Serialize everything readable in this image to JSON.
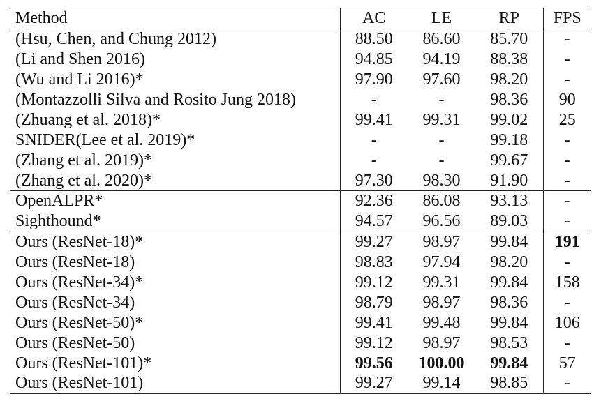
{
  "table": {
    "headers": [
      "Method",
      "AC",
      "LE",
      "RP",
      "FPS"
    ],
    "groups": [
      [
        {
          "method": "(Hsu, Chen, and Chung 2012)",
          "ac": "88.50",
          "le": "86.60",
          "rp": "85.70",
          "fps": "-"
        },
        {
          "method": "(Li and Shen 2016)",
          "ac": "94.85",
          "le": "94.19",
          "rp": "88.38",
          "fps": "-"
        },
        {
          "method": "(Wu and Li 2016)*",
          "ac": "97.90",
          "le": "97.60",
          "rp": "98.20",
          "fps": "-"
        },
        {
          "method": "(Montazzolli Silva and Rosito Jung 2018)",
          "ac": "-",
          "le": "-",
          "rp": "98.36",
          "fps": "90"
        },
        {
          "method": "(Zhuang et al. 2018)*",
          "ac": "99.41",
          "le": "99.31",
          "rp": "99.02",
          "fps": "25"
        },
        {
          "method": "SNIDER(Lee et al. 2019)*",
          "ac": "-",
          "le": "-",
          "rp": "99.18",
          "fps": "-"
        },
        {
          "method": "(Zhang et al. 2019)*",
          "ac": "-",
          "le": "-",
          "rp": "99.67",
          "fps": "-"
        },
        {
          "method": "(Zhang et al. 2020)*",
          "ac": "97.30",
          "le": "98.30",
          "rp": "91.90",
          "fps": "-"
        }
      ],
      [
        {
          "method": "OpenALPR*",
          "ac": "92.36",
          "le": "86.08",
          "rp": "93.13",
          "fps": "-"
        },
        {
          "method": "Sighthound*",
          "ac": "94.57",
          "le": "96.56",
          "rp": "89.03",
          "fps": "-"
        }
      ],
      [
        {
          "method": "Ours (ResNet-18)*",
          "ac": "99.27",
          "le": "98.97",
          "rp": "99.84",
          "fps": "191"
        },
        {
          "method": "Ours (ResNet-18)",
          "ac": "98.83",
          "le": "97.94",
          "rp": "98.20",
          "fps": "-"
        },
        {
          "method": "Ours (ResNet-34)*",
          "ac": "99.12",
          "le": "99.31",
          "rp": "99.84",
          "fps": "158"
        },
        {
          "method": "Ours (ResNet-34)",
          "ac": "98.79",
          "le": "98.97",
          "rp": "98.36",
          "fps": "-"
        },
        {
          "method": "Ours (ResNet-50)*",
          "ac": "99.41",
          "le": "99.48",
          "rp": "99.84",
          "fps": "106"
        },
        {
          "method": "Ours (ResNet-50)",
          "ac": "99.12",
          "le": "98.97",
          "rp": "98.53",
          "fps": "-"
        },
        {
          "method": "Ours (ResNet-101)*",
          "ac": "99.56",
          "le": "100.00",
          "rp": "99.84",
          "fps": "57"
        },
        {
          "method": "Ours (ResNet-101)",
          "ac": "99.27",
          "le": "99.14",
          "rp": "98.85",
          "fps": "-"
        }
      ]
    ]
  }
}
